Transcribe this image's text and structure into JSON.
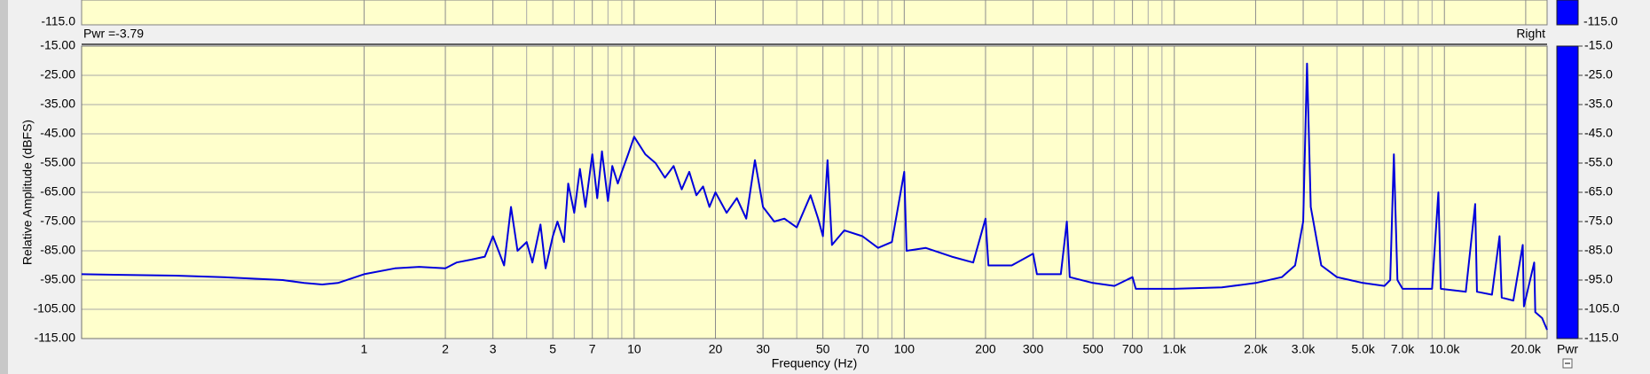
{
  "chart_data": {
    "type": "line",
    "title": "Pwr =-3.79",
    "xlabel": "Frequency (Hz)",
    "ylabel": "Relative Amplitude (dBFS)",
    "xscale": "log",
    "grid": true,
    "xlim": [
      0.09,
      24000
    ],
    "ylim": [
      -115,
      -15
    ],
    "xticks": [
      1,
      2,
      3,
      5,
      7,
      10,
      20,
      30,
      50,
      70,
      100,
      200,
      300,
      500,
      700,
      {
        "value": 1000,
        "label": "1.0k"
      },
      {
        "value": 2000,
        "label": "2.0k"
      },
      {
        "value": 3000,
        "label": "3.0k"
      },
      {
        "value": 5000,
        "label": "5.0k"
      },
      {
        "value": 7000,
        "label": "7.0k"
      },
      {
        "value": 10000,
        "label": "10.0k"
      },
      {
        "value": 20000,
        "label": "20.0k"
      }
    ],
    "xgrid_minor": [
      4,
      6,
      8,
      9,
      40,
      60,
      80,
      90,
      400,
      600,
      800,
      900,
      4000,
      6000,
      8000,
      9000
    ],
    "yticks": [
      {
        "value": -15,
        "label": "-15.00"
      },
      {
        "value": -25,
        "label": "-25.00"
      },
      {
        "value": -35,
        "label": "-35.00"
      },
      {
        "value": -45,
        "label": "-45.00"
      },
      {
        "value": -55,
        "label": "-55.00"
      },
      {
        "value": -65,
        "label": "-65.00"
      },
      {
        "value": -75,
        "label": "-75.00"
      },
      {
        "value": -85,
        "label": "-85.00"
      },
      {
        "value": -95,
        "label": "-95.00"
      },
      {
        "value": -105,
        "label": "-105.00"
      },
      {
        "value": -115,
        "label": "-115.00"
      }
    ],
    "y2lim": [
      -115,
      -15
    ],
    "y2label": "Pwr",
    "y2ticks": [
      {
        "value": -15,
        "label": "-15.0"
      },
      {
        "value": -25,
        "label": "-25.0"
      },
      {
        "value": -35,
        "label": "-35.0"
      },
      {
        "value": -45,
        "label": "-45.0"
      },
      {
        "value": -55,
        "label": "-55.0"
      },
      {
        "value": -65,
        "label": "-65.0"
      },
      {
        "value": -75,
        "label": "-75.0"
      },
      {
        "value": -85,
        "label": "-85.0"
      },
      {
        "value": -95,
        "label": "-95.0"
      },
      {
        "value": -105,
        "label": "-105.0"
      },
      {
        "value": -115,
        "label": "-115.0"
      }
    ],
    "top_panel": {
      "left_label": "-115.0",
      "right_label": "-115.0"
    },
    "x": [
      0.09,
      0.2,
      0.3,
      0.5,
      0.6,
      0.7,
      0.8,
      1.0,
      1.3,
      1.6,
      2.0,
      2.2,
      2.5,
      2.8,
      3.0,
      3.3,
      3.5,
      3.7,
      4.0,
      4.2,
      4.5,
      4.7,
      5.0,
      5.2,
      5.5,
      5.7,
      6.0,
      6.3,
      6.6,
      7.0,
      7.3,
      7.6,
      8.0,
      8.3,
      8.7,
      9.0,
      9.5,
      10,
      11,
      12,
      13,
      14,
      15,
      16,
      17,
      18,
      19,
      20,
      22,
      24,
      26,
      28,
      30,
      33,
      36,
      40,
      45,
      48,
      50,
      52,
      54,
      60,
      70,
      80,
      90,
      100,
      102,
      120,
      150,
      180,
      200,
      205,
      250,
      300,
      310,
      380,
      400,
      410,
      500,
      600,
      700,
      720,
      1000,
      1500,
      2000,
      2500,
      2800,
      3000,
      3100,
      3200,
      3500,
      4000,
      5000,
      6000,
      6300,
      6500,
      6700,
      7000,
      9000,
      9500,
      9700,
      12000,
      13000,
      13200,
      15000,
      16000,
      16300,
      18000,
      19500,
      19700,
      21500,
      21700,
      23000,
      24000
    ],
    "series": [
      {
        "name": "Right",
        "color": "#0000dd",
        "values": [
          -93,
          -93.5,
          -94,
          -95,
          -96,
          -96.5,
          -96,
          -93,
          -91,
          -90.5,
          -91,
          -89,
          -88,
          -87,
          -80,
          -90,
          -70,
          -85,
          -82,
          -89,
          -76,
          -91,
          -80,
          -75,
          -82,
          -62,
          -72,
          -57,
          -70,
          -52,
          -67,
          -51,
          -68,
          -56,
          -62,
          -58,
          -52,
          -46,
          -52,
          -55,
          -60,
          -56,
          -64,
          -58,
          -66,
          -63,
          -70,
          -65,
          -72,
          -67,
          -74,
          -54,
          -70,
          -75,
          -74,
          -77,
          -66,
          -74,
          -80,
          -54,
          -83,
          -78,
          -80,
          -84,
          -82,
          -58,
          -85,
          -84,
          -87,
          -89,
          -74,
          -90,
          -90,
          -86,
          -93,
          -93,
          -75,
          -94,
          -96,
          -97,
          -94,
          -98,
          -98,
          -97.5,
          -96,
          -94,
          -90,
          -75,
          -21,
          -70,
          -90,
          -94,
          -96,
          -97,
          -95,
          -52,
          -95,
          -98,
          -98,
          -65,
          -98,
          -99,
          -69,
          -99,
          -100,
          -80,
          -101,
          -102,
          -83,
          -104,
          -89,
          -106,
          -108,
          -112
        ]
      }
    ]
  }
}
